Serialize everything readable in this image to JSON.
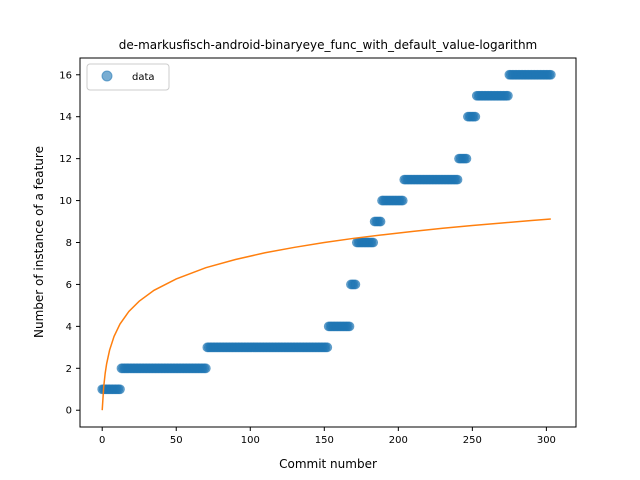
{
  "chart_data": {
    "type": "scatter",
    "title": "de-markusfisch-android-binaryeye_func_with_default_value-logarithm",
    "xlabel": "Commit number",
    "ylabel": "Number of instance of a feature",
    "xlim": [
      -15,
      320
    ],
    "ylim": [
      -0.8,
      16.8
    ],
    "x_ticks": [
      0,
      50,
      100,
      150,
      200,
      250,
      300
    ],
    "y_ticks": [
      0,
      2,
      4,
      6,
      8,
      10,
      12,
      14,
      16
    ],
    "legend": {
      "position": "top-left",
      "entries": [
        "data"
      ]
    },
    "colors": {
      "data": "#1f77b4",
      "fit": "#ff7f0e"
    },
    "series": [
      {
        "name": "data",
        "kind": "scatter",
        "runs": [
          {
            "x_start": 0,
            "x_end": 12,
            "y": 1
          },
          {
            "x_start": 13,
            "x_end": 70,
            "y": 2
          },
          {
            "x_start": 71,
            "x_end": 152,
            "y": 3
          },
          {
            "x_start": 153,
            "x_end": 167,
            "y": 4
          },
          {
            "x_start": 168,
            "x_end": 171,
            "y": 6
          },
          {
            "x_start": 172,
            "x_end": 183,
            "y": 8
          },
          {
            "x_start": 184,
            "x_end": 188,
            "y": 9
          },
          {
            "x_start": 189,
            "x_end": 203,
            "y": 10
          },
          {
            "x_start": 204,
            "x_end": 240,
            "y": 11
          },
          {
            "x_start": 241,
            "x_end": 246,
            "y": 12
          },
          {
            "x_start": 247,
            "x_end": 252,
            "y": 14
          },
          {
            "x_start": 253,
            "x_end": 274,
            "y": 15
          },
          {
            "x_start": 275,
            "x_end": 303,
            "y": 16
          }
        ]
      },
      {
        "kind": "line",
        "x": [
          0,
          1,
          2,
          3,
          5,
          8,
          12,
          18,
          25,
          35,
          50,
          70,
          90,
          110,
          130,
          150,
          170,
          190,
          210,
          230,
          250,
          270,
          290,
          303
        ],
        "y": [
          0,
          1.11,
          1.76,
          2.22,
          2.87,
          3.52,
          4.11,
          4.71,
          5.2,
          5.72,
          6.26,
          6.8,
          7.19,
          7.51,
          7.77,
          8.0,
          8.2,
          8.37,
          8.53,
          8.68,
          8.81,
          8.93,
          9.05,
          9.12
        ]
      }
    ]
  }
}
